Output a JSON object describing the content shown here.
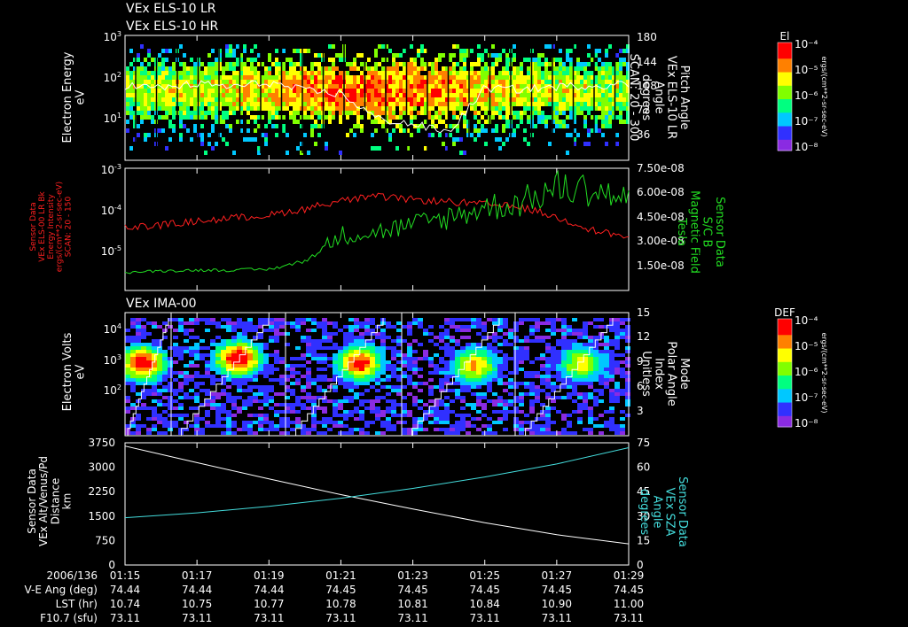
{
  "colors": {
    "background": "#000000",
    "foreground": "#ffffff",
    "red_trace": "#ff2020",
    "green_trace": "#22dd22",
    "cyan_trace": "#44dddd",
    "spectrogram_scale": [
      "#8a2be2",
      "#3030ff",
      "#00c8ff",
      "#00ff80",
      "#80ff00",
      "#ffff00",
      "#ff8000",
      "#ff0000"
    ]
  },
  "headers": {
    "els_lr": "VEx ELS-10 LR",
    "els_hr": "VEx ELS-10 HR",
    "ima": "VEx IMA-00"
  },
  "panel1": {
    "left_label": [
      "Electron Energy",
      "eV"
    ],
    "right_label": [
      "Pitch Angle",
      "VEx ELS-10 LR",
      "Angle",
      "degrees",
      "SCAN: 20 - 300"
    ],
    "y_ticks": [
      {
        "base": "10",
        "exp": "3"
      },
      {
        "base": "10",
        "exp": "2"
      },
      {
        "base": "10",
        "exp": "1"
      }
    ],
    "y2_ticks": [
      "180",
      "144",
      "108",
      "72",
      "36"
    ],
    "colorbar": {
      "title": "El",
      "ticks": [
        "10⁻⁴",
        "10⁻⁵",
        "10⁻⁶",
        "10⁻⁷",
        "10⁻⁸"
      ],
      "units": "ergs/(cm**2-sr-sec-eV)"
    }
  },
  "panel2": {
    "left_label": [
      "Sensor Data",
      "VEx ELS-00 LR Bk",
      "Energy Intensity",
      "ergs/(cm**2-sr-sec-eV)",
      "SCAN: 20 - 150"
    ],
    "right_label": [
      "Sensor Data",
      "S/C B",
      "Magnetic Field",
      "Tesla"
    ],
    "y_ticks": [
      {
        "base": "10",
        "exp": "-3"
      },
      {
        "base": "10",
        "exp": "-4"
      },
      {
        "base": "10",
        "exp": "-5"
      }
    ],
    "y2_ticks": [
      "7.50e-08",
      "6.00e-08",
      "4.50e-08",
      "3.00e-08",
      "1.50e-08"
    ]
  },
  "panel3": {
    "left_label": [
      "Electron Volts",
      "eV"
    ],
    "right_label": [
      "Mode",
      "Polar Angle",
      "Index",
      "Unitless"
    ],
    "y_ticks": [
      {
        "base": "10",
        "exp": "4"
      },
      {
        "base": "10",
        "exp": "3"
      },
      {
        "base": "10",
        "exp": "2"
      }
    ],
    "y2_ticks": [
      "15",
      "12",
      "9",
      "6",
      "3"
    ],
    "colorbar": {
      "title": "DEF",
      "ticks": [
        "10⁻⁴",
        "10⁻⁵",
        "10⁻⁶",
        "10⁻⁷",
        "10⁻⁸"
      ],
      "units": "ergs/(cm**2-sr-sec-eV)"
    }
  },
  "panel4": {
    "left_label": [
      "Sensor Data",
      "VEx Alt/Venus/Pd",
      "Distance",
      "km"
    ],
    "right_label": [
      "Sensor Data",
      "VEx SZA",
      "Angle",
      "degrees"
    ],
    "y_ticks": [
      "3750",
      "3000",
      "2250",
      "1500",
      "750",
      "0"
    ],
    "y2_ticks": [
      "75",
      "60",
      "45",
      "30",
      "15",
      "0"
    ]
  },
  "footer": {
    "row_labels": [
      "2006/136",
      "V-E Ang (deg)",
      "LST (hr)",
      "F10.7 (sfu)"
    ],
    "times": [
      "01:15",
      "01:17",
      "01:19",
      "01:21",
      "01:23",
      "01:25",
      "01:27",
      "01:29"
    ],
    "ve_ang": [
      "74.44",
      "74.44",
      "74.44",
      "74.45",
      "74.45",
      "74.45",
      "74.45",
      "74.45"
    ],
    "lst": [
      "10.74",
      "10.75",
      "10.77",
      "10.78",
      "10.81",
      "10.84",
      "10.90",
      "11.00"
    ],
    "f107": [
      "73.11",
      "73.11",
      "73.11",
      "73.11",
      "73.11",
      "73.11",
      "73.11",
      "73.11"
    ]
  },
  "chart_data": [
    {
      "type": "line",
      "title": "VEx ELS-10 LR / VEx ELS-10 HR",
      "xlabel": "",
      "ylabel": "Electron Energy (eV)",
      "note": "spectrogram with pitch-angle overlay",
      "x": [
        "01:15",
        "01:16",
        "01:17",
        "01:18",
        "01:19",
        "01:20",
        "01:21",
        "01:22",
        "01:23",
        "01:24",
        "01:25",
        "01:26",
        "01:27",
        "01:28",
        "01:29"
      ],
      "series": [
        {
          "name": "Pitch Angle",
          "values": [
            108,
            104,
            110,
            106,
            112,
            100,
            96,
            60,
            52,
            40,
            104,
            102,
            106,
            108,
            110
          ]
        }
      ],
      "ylim": [
        1,
        1000
      ],
      "y2lim": [
        0,
        180
      ]
    },
    {
      "type": "line",
      "xlabel": "",
      "ylabel": "Energy Intensity",
      "x": [
        "01:15",
        "01:16",
        "01:17",
        "01:18",
        "01:19",
        "01:20",
        "01:21",
        "01:22",
        "01:23",
        "01:24",
        "01:25",
        "01:26",
        "01:27",
        "01:28",
        "01:29"
      ],
      "series": [
        {
          "name": "ELS-00 LR Bk",
          "axis": "left",
          "values": [
            3.5e-05,
            4e-05,
            5e-05,
            6e-05,
            7e-05,
            0.0001,
            0.00016,
            0.0002,
            0.00017,
            0.00015,
            0.00013,
            0.00011,
            6e-05,
            3e-05,
            2e-05
          ]
        },
        {
          "name": "S/C B",
          "axis": "right",
          "values": [
            1.1e-08,
            1.2e-08,
            1.25e-08,
            1.25e-08,
            1.3e-08,
            1.8e-08,
            3.4e-08,
            3.6e-08,
            4e-08,
            4.5e-08,
            5.1e-08,
            5.4e-08,
            6.3e-08,
            6.2e-08,
            5.5e-08
          ]
        }
      ],
      "ylim": [
        1e-06,
        0.001
      ],
      "y2lim": [
        0,
        7.5e-08
      ]
    },
    {
      "type": "line",
      "title": "VEx IMA-00",
      "xlabel": "",
      "ylabel": "Electron Volts (eV)",
      "note": "ion spectrogram with polar angle index sawtooth",
      "x": [
        "01:15",
        "01:17",
        "01:19",
        "01:21",
        "01:23",
        "01:25",
        "01:27",
        "01:29"
      ],
      "series": [
        {
          "name": "Polar Angle Index",
          "values": [
            15,
            0,
            15,
            0,
            15,
            0,
            15,
            0
          ]
        }
      ],
      "ylim": [
        10,
        50000
      ],
      "y2lim": [
        0,
        15
      ]
    },
    {
      "type": "line",
      "xlabel": "",
      "ylabel": "Distance (km)",
      "x": [
        "01:15",
        "01:17",
        "01:19",
        "01:21",
        "01:23",
        "01:25",
        "01:27",
        "01:29"
      ],
      "series": [
        {
          "name": "VEx Alt/Venus/Pd",
          "axis": "left",
          "values": [
            3650,
            3140,
            2640,
            2160,
            1720,
            1300,
            930,
            650
          ]
        },
        {
          "name": "VEx SZA",
          "axis": "right",
          "values": [
            29,
            32,
            36,
            41,
            47,
            54,
            62,
            72
          ]
        }
      ],
      "ylim": [
        0,
        3750
      ],
      "y2lim": [
        0,
        75
      ]
    }
  ]
}
